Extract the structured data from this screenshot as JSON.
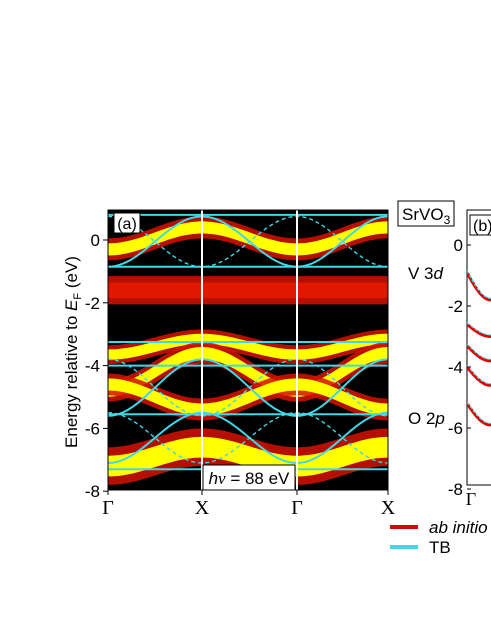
{
  "chart_data": [
    {
      "type": "heatmap",
      "panel_label": "(a)",
      "compound_label": "SrVO",
      "compound_sub": "3",
      "photon_energy": "88 eV",
      "photon_prefix": "h",
      "photon_nu": "ν",
      "ylabel_main": "Energy relative to ",
      "ylabel_e": "E",
      "ylabel_sub": "F",
      "ylabel_unit": " (eV)",
      "ylim": [
        -8,
        0.8
      ],
      "yticks": [
        0,
        -2,
        -4,
        -6,
        -8
      ],
      "xticks": [
        "Γ",
        "X",
        "Γ",
        "X"
      ],
      "annotations": [
        {
          "text": "V 3",
          "ital": "d",
          "y": -1.1
        },
        {
          "text": "O 2",
          "ital": "p",
          "y": -4.9
        }
      ],
      "tb_flat_bands": [
        0.8,
        -0.85,
        -3.25,
        -4.0,
        -5.55,
        -7.3
      ],
      "tb_dispersive": [
        {
          "name": "V3d",
          "center": -0.05,
          "amp": 0.8
        },
        {
          "name": "O2p-upper",
          "center": -4.7,
          "amp": 0.9
        },
        {
          "name": "O2p-lower",
          "center": -6.3,
          "amp": 0.8
        }
      ]
    },
    {
      "type": "line",
      "panel_label": "(b)",
      "ylim": [
        -8,
        0.8
      ],
      "yticks": [
        0,
        -2,
        -4,
        -6,
        -8
      ],
      "xticks": [
        "Γ"
      ],
      "series": [
        {
          "name": "ab initio",
          "color": "#e00000"
        },
        {
          "name": "TB",
          "color": "#40d8e8"
        }
      ]
    }
  ],
  "colors": {
    "tb": "#40d8e8",
    "abinitio": "#e00000",
    "intensity_high": "#ffff00",
    "intensity_mid": "#dd1a00",
    "intensity_low": "#000000"
  }
}
